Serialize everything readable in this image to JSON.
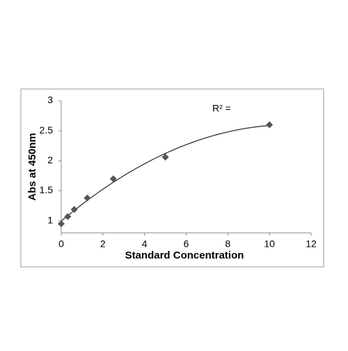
{
  "chart_data": {
    "type": "scatter",
    "x_label": "Standard Concentration",
    "y_label": "Abs at 450nm",
    "annotation": "R² =",
    "x": [
      0,
      0.3125,
      0.625,
      1.25,
      2.5,
      5,
      10
    ],
    "values": [
      0.95,
      1.07,
      1.19,
      1.38,
      1.7,
      2.06,
      2.6
    ],
    "color": "#555555",
    "trendline": "polynomial",
    "xlim": [
      0,
      12
    ],
    "xticks": [
      0,
      2,
      4,
      6,
      8,
      10,
      12
    ],
    "ylim": [
      0.8,
      3
    ],
    "yticks": [
      1,
      1.5,
      2,
      2.5,
      3
    ],
    "grid": false
  }
}
